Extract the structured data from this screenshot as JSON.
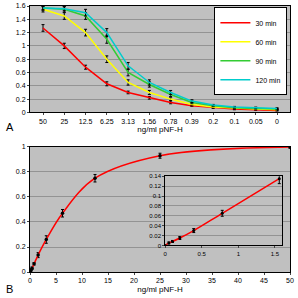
{
  "chart_data": [
    {
      "type": "line",
      "annotations": [
        "A"
      ],
      "x_label": "ng/ml pNF-H",
      "categories": [
        "50",
        "25",
        "12.5",
        "6.25",
        "3.13",
        "1.56",
        "0.78",
        "0.39",
        "0.2",
        "0.1",
        "0.05",
        "0"
      ],
      "ylim": [
        0,
        1.6
      ],
      "yticks": [
        0,
        0.2,
        0.4,
        0.6,
        0.8,
        1,
        1.2,
        1.4,
        1.6
      ],
      "grid": true,
      "legend": "upper right",
      "series": [
        {
          "name": "30 min",
          "color": "#ff0000",
          "values": [
            1.27,
            1.0,
            0.68,
            0.43,
            0.3,
            0.22,
            0.15,
            0.1,
            0.07,
            0.05,
            0.04,
            0.03
          ],
          "errors": [
            0.05,
            0.04,
            0.03,
            0.03,
            0.02,
            0.02,
            0.02,
            0.01,
            0.01,
            0.01,
            0.01,
            0.01
          ]
        },
        {
          "name": "60 min",
          "color": "#ffff00",
          "values": [
            1.55,
            1.45,
            1.2,
            0.8,
            0.45,
            0.3,
            0.2,
            0.12,
            0.08,
            0.06,
            0.05,
            0.04
          ],
          "errors": [
            0.04,
            0.05,
            0.05,
            0.05,
            0.04,
            0.03,
            0.02,
            0.02,
            0.01,
            0.01,
            0.01,
            0.01
          ]
        },
        {
          "name": "90 min",
          "color": "#33cc33",
          "values": [
            1.57,
            1.55,
            1.45,
            1.1,
            0.6,
            0.42,
            0.27,
            0.15,
            0.1,
            0.07,
            0.06,
            0.05
          ],
          "errors": [
            0.03,
            0.04,
            0.05,
            0.06,
            0.05,
            0.04,
            0.03,
            0.02,
            0.01,
            0.01,
            0.01,
            0.01
          ]
        },
        {
          "name": "120 min",
          "color": "#00cccc",
          "values": [
            1.57,
            1.56,
            1.5,
            1.2,
            0.7,
            0.45,
            0.3,
            0.17,
            0.11,
            0.08,
            0.07,
            0.06
          ],
          "errors": [
            0.03,
            0.03,
            0.05,
            0.06,
            0.05,
            0.04,
            0.03,
            0.02,
            0.01,
            0.01,
            0.01,
            0.01
          ]
        }
      ]
    },
    {
      "type": "line",
      "annotations": [
        "B"
      ],
      "x_label": "ng/ml pNF-H",
      "marker": "circle",
      "x": [
        50,
        25,
        12.5,
        6.25,
        3.13,
        1.56,
        0.78,
        0.39,
        0.2,
        0.1,
        0.05,
        0
      ],
      "xlim": [
        0,
        50
      ],
      "xticks": [
        0,
        5,
        10,
        15,
        20,
        25,
        30,
        35,
        40,
        45,
        50
      ],
      "ylim": [
        0,
        1
      ],
      "yticks": [
        0,
        0.2,
        0.4,
        0.6,
        0.8,
        1
      ],
      "grid": true,
      "series": [
        {
          "color": "#ff0000",
          "values": [
            1.0,
            0.93,
            0.75,
            0.47,
            0.26,
            0.135,
            0.065,
            0.03,
            0.015,
            0.008,
            0.005,
            0
          ],
          "errors": [
            0.01,
            0.02,
            0.03,
            0.03,
            0.03,
            0.02,
            0.01,
            0.01,
            0.005,
            0.003,
            0.002,
            0.001
          ]
        }
      ]
    },
    {
      "type": "line",
      "marker": "circle",
      "x": [
        1.56,
        0.78,
        0.39,
        0.2,
        0.1,
        0.05,
        0
      ],
      "xlim": [
        0,
        1.6
      ],
      "xticks": [
        0,
        0.5,
        1,
        1.5
      ],
      "ylim": [
        0,
        0.14
      ],
      "yticks": [
        0,
        0.02,
        0.04,
        0.06,
        0.08,
        0.1,
        0.12,
        0.14
      ],
      "grid": true,
      "series": [
        {
          "color": "#ff0000",
          "values": [
            0.135,
            0.065,
            0.03,
            0.015,
            0.008,
            0.005,
            0
          ],
          "errors": [
            0.01,
            0.006,
            0.004,
            0.003,
            0.002,
            0.002,
            0.001
          ]
        }
      ]
    }
  ]
}
